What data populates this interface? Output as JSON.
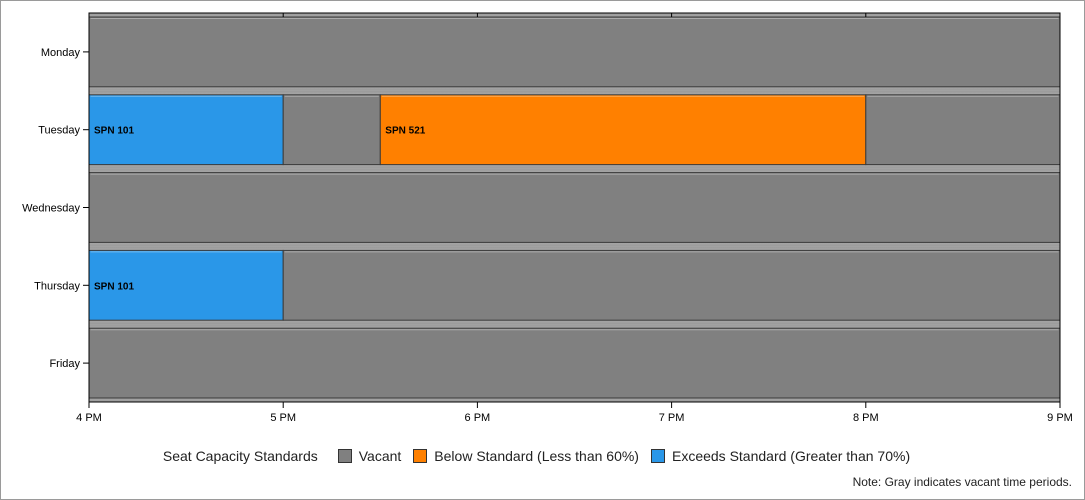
{
  "chart_data": {
    "type": "gantt",
    "x_axis": {
      "ticks": [
        "4 PM",
        "5 PM",
        "6 PM",
        "7 PM",
        "8 PM",
        "9 PM"
      ],
      "range_hours": [
        16,
        21
      ]
    },
    "categories": [
      "Monday",
      "Tuesday",
      "Wednesday",
      "Thursday",
      "Friday"
    ],
    "status_colors": {
      "vacant": "#808080",
      "below": "#ff8000",
      "exceeds": "#2a97e8"
    },
    "segments": [
      {
        "day": "Monday",
        "start": 16,
        "end": 21,
        "status": "vacant",
        "label": ""
      },
      {
        "day": "Tuesday",
        "start": 16,
        "end": 17,
        "status": "exceeds",
        "label": "SPN 101"
      },
      {
        "day": "Tuesday",
        "start": 17,
        "end": 17.5,
        "status": "vacant",
        "label": ""
      },
      {
        "day": "Tuesday",
        "start": 17.5,
        "end": 20,
        "status": "below",
        "label": "SPN 521"
      },
      {
        "day": "Tuesday",
        "start": 20,
        "end": 21,
        "status": "vacant",
        "label": ""
      },
      {
        "day": "Wednesday",
        "start": 16,
        "end": 21,
        "status": "vacant",
        "label": ""
      },
      {
        "day": "Thursday",
        "start": 16,
        "end": 17,
        "status": "exceeds",
        "label": "SPN 101"
      },
      {
        "day": "Thursday",
        "start": 17,
        "end": 21,
        "status": "vacant",
        "label": ""
      },
      {
        "day": "Friday",
        "start": 16,
        "end": 21,
        "status": "vacant",
        "label": ""
      }
    ],
    "legend": {
      "title": "Seat Capacity Standards",
      "items": [
        {
          "status": "vacant",
          "label": "Vacant"
        },
        {
          "status": "below",
          "label": "Below Standard (Less than 60%)"
        },
        {
          "status": "exceeds",
          "label": "Exceeds Standard (Greater than 70%)"
        }
      ]
    },
    "note": "Note: Gray indicates vacant time periods."
  }
}
